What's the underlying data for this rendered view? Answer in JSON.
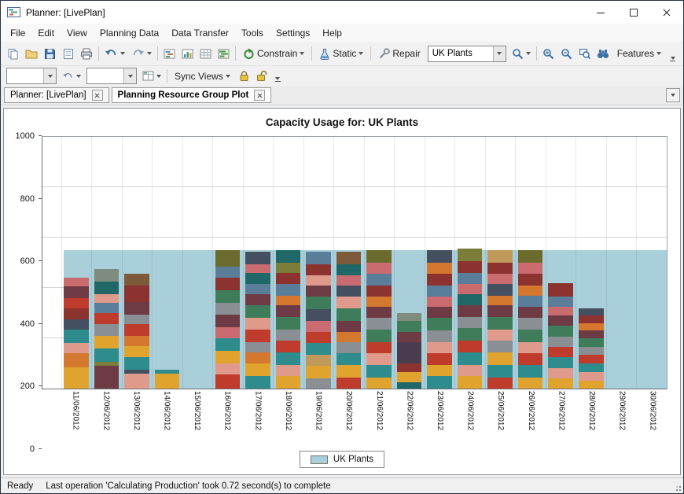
{
  "window": {
    "title": "Planner: [LivePlan]"
  },
  "menu_bar": {
    "items": [
      "File",
      "Edit",
      "View",
      "Planning Data",
      "Data Transfer",
      "Tools",
      "Settings",
      "Help"
    ]
  },
  "toolbar_main": {
    "constrain": "Constrain",
    "static": "Static",
    "repair": "Repair",
    "plant_selector": "UK Plants",
    "features": "Features"
  },
  "toolbar_views": {
    "combo1": "",
    "combo2": "",
    "sync_views": "Sync Views"
  },
  "tab_bar": {
    "tabs": [
      {
        "label": "Planner: [LivePlan]",
        "active": false
      },
      {
        "label": "Planning Resource Group Plot",
        "active": true
      }
    ]
  },
  "chart_data": {
    "type": "bar",
    "stacked": true,
    "title": "Capacity Usage for: UK Plants",
    "ylim": [
      0,
      1000
    ],
    "yticks": [
      0,
      200,
      400,
      600,
      800,
      1000
    ],
    "grid": true,
    "legend_position": "bottom",
    "capacity_series": {
      "name": "UK Plants",
      "value": 550,
      "color": "#a9cfda"
    },
    "legend": [
      {
        "label": "UK Plants",
        "color": "#a9cfda"
      }
    ],
    "categories": [
      "11/06/2012",
      "12/06/2012",
      "13/06/2012",
      "14/06/2012",
      "15/06/2012",
      "16/06/2012",
      "17/06/2012",
      "18/06/2012",
      "19/06/2012",
      "20/06/2012",
      "21/06/2012",
      "22/06/2012",
      "23/06/2012",
      "24/06/2012",
      "25/06/2012",
      "26/06/2012",
      "27/06/2012",
      "28/06/2012",
      "29/06/2012",
      "30/06/2012"
    ],
    "bars": [
      {
        "date": "11/06/2012",
        "total": 440,
        "segments": [
          [
            "#e0a32e",
            85
          ],
          [
            "#d4772f",
            55
          ],
          [
            "#e09a8c",
            40
          ],
          [
            "#2e8c8c",
            55
          ],
          [
            "#445060",
            40
          ],
          [
            "#8c3330",
            45
          ],
          [
            "#bf3b2b",
            40
          ],
          [
            "#6e3a44",
            45
          ],
          [
            "#c96b6f",
            35
          ]
        ]
      },
      {
        "date": "12/06/2012",
        "total": 475,
        "segments": [
          [
            "#6e3a44",
            90
          ],
          [
            "#7d7d3a",
            15
          ],
          [
            "#2e8c8c",
            55
          ],
          [
            "#e0a32e",
            50
          ],
          [
            "#8a8f94",
            45
          ],
          [
            "#bf3b2b",
            45
          ],
          [
            "#5a7d9a",
            40
          ],
          [
            "#e09a8c",
            35
          ],
          [
            "#206868",
            50
          ],
          [
            "#7d8c7c",
            50
          ]
        ]
      },
      {
        "date": "13/06/2012",
        "total": 455,
        "segments": [
          [
            "#e09a8c",
            60
          ],
          [
            "#445060",
            15
          ],
          [
            "#2e8c8c",
            50
          ],
          [
            "#e0a32e",
            45
          ],
          [
            "#d4772f",
            40
          ],
          [
            "#bf3b2b",
            45
          ],
          [
            "#8a8f94",
            40
          ],
          [
            "#6e3a44",
            50
          ],
          [
            "#8c3330",
            65
          ],
          [
            "#7d5a3a",
            45
          ]
        ]
      },
      {
        "date": "14/06/2012",
        "total": 75,
        "segments": [
          [
            "#e0a32e",
            60
          ],
          [
            "#2e8c8c",
            15
          ]
        ]
      },
      {
        "date": "15/06/2012",
        "total": 0,
        "segments": []
      },
      {
        "date": "16/06/2012",
        "total": 550,
        "segments": [
          [
            "#bf3b2b",
            55
          ],
          [
            "#e09a8c",
            45
          ],
          [
            "#e0a32e",
            50
          ],
          [
            "#2e8c8c",
            50
          ],
          [
            "#c96b6f",
            45
          ],
          [
            "#6e3a44",
            50
          ],
          [
            "#8a8f94",
            45
          ],
          [
            "#3f7d5a",
            50
          ],
          [
            "#8c3330",
            50
          ],
          [
            "#5a7d9a",
            45
          ],
          [
            "#6b6b2e",
            65
          ]
        ]
      },
      {
        "date": "17/06/2012",
        "total": 545,
        "segments": [
          [
            "#2e8c8c",
            50
          ],
          [
            "#e0a32e",
            50
          ],
          [
            "#d4772f",
            45
          ],
          [
            "#8a8f94",
            40
          ],
          [
            "#bf3b2b",
            50
          ],
          [
            "#e09a8c",
            45
          ],
          [
            "#3f7d5a",
            50
          ],
          [
            "#6e3a44",
            45
          ],
          [
            "#5a7d9a",
            40
          ],
          [
            "#206868",
            45
          ],
          [
            "#c96b6f",
            35
          ],
          [
            "#445060",
            50
          ]
        ]
      },
      {
        "date": "18/06/2012",
        "total": 550,
        "segments": [
          [
            "#e0a32e",
            50
          ],
          [
            "#e09a8c",
            45
          ],
          [
            "#2e8c8c",
            50
          ],
          [
            "#bf3b2b",
            45
          ],
          [
            "#8a8f94",
            45
          ],
          [
            "#3f7d5a",
            50
          ],
          [
            "#6e3a44",
            45
          ],
          [
            "#d4772f",
            40
          ],
          [
            "#5a7d9a",
            45
          ],
          [
            "#8c3330",
            45
          ],
          [
            "#7d7d3a",
            40
          ],
          [
            "#206868",
            50
          ]
        ]
      },
      {
        "date": "19/06/2012",
        "total": 545,
        "segments": [
          [
            "#8a8f94",
            40
          ],
          [
            "#e0a32e",
            50
          ],
          [
            "#bf9a5a",
            45
          ],
          [
            "#2e8c8c",
            45
          ],
          [
            "#bf3b2b",
            45
          ],
          [
            "#c96b6f",
            45
          ],
          [
            "#445060",
            45
          ],
          [
            "#3f7d5a",
            50
          ],
          [
            "#6e3a44",
            45
          ],
          [
            "#e09a8c",
            40
          ],
          [
            "#8c3330",
            45
          ],
          [
            "#5a7d9a",
            50
          ]
        ]
      },
      {
        "date": "20/06/2012",
        "total": 545,
        "segments": [
          [
            "#bf3b2b",
            45
          ],
          [
            "#e0a32e",
            50
          ],
          [
            "#2e8c8c",
            45
          ],
          [
            "#8a8f94",
            45
          ],
          [
            "#d4772f",
            40
          ],
          [
            "#6e3a44",
            45
          ],
          [
            "#3f7d5a",
            50
          ],
          [
            "#e09a8c",
            45
          ],
          [
            "#445060",
            45
          ],
          [
            "#c96b6f",
            40
          ],
          [
            "#206868",
            45
          ],
          [
            "#7d5a3a",
            50
          ]
        ]
      },
      {
        "date": "21/06/2012",
        "total": 550,
        "segments": [
          [
            "#e0a32e",
            45
          ],
          [
            "#2e8c8c",
            50
          ],
          [
            "#e09a8c",
            45
          ],
          [
            "#bf3b2b",
            45
          ],
          [
            "#3f7d5a",
            50
          ],
          [
            "#8a8f94",
            45
          ],
          [
            "#6e3a44",
            45
          ],
          [
            "#d4772f",
            40
          ],
          [
            "#8c3330",
            45
          ],
          [
            "#5a7d9a",
            45
          ],
          [
            "#c96b6f",
            45
          ],
          [
            "#6b6b2e",
            50
          ]
        ]
      },
      {
        "date": "22/06/2012",
        "total": 300,
        "segments": [
          [
            "#206868",
            25
          ],
          [
            "#e0a32e",
            40
          ],
          [
            "#8c3330",
            35
          ],
          [
            "#4a3c50",
            85
          ],
          [
            "#6e3a44",
            40
          ],
          [
            "#3f7d5a",
            45
          ],
          [
            "#7d8c7c",
            30
          ]
        ]
      },
      {
        "date": "23/06/2012",
        "total": 550,
        "segments": [
          [
            "#2e8c8c",
            50
          ],
          [
            "#e0a32e",
            45
          ],
          [
            "#bf3b2b",
            45
          ],
          [
            "#e09a8c",
            45
          ],
          [
            "#8a8f94",
            45
          ],
          [
            "#3f7d5a",
            50
          ],
          [
            "#6e3a44",
            45
          ],
          [
            "#c96b6f",
            40
          ],
          [
            "#5a7d9a",
            45
          ],
          [
            "#8c3330",
            45
          ],
          [
            "#d4772f",
            45
          ],
          [
            "#445060",
            50
          ]
        ]
      },
      {
        "date": "24/06/2012",
        "total": 555,
        "segments": [
          [
            "#e0a32e",
            50
          ],
          [
            "#e09a8c",
            45
          ],
          [
            "#2e8c8c",
            50
          ],
          [
            "#bf3b2b",
            45
          ],
          [
            "#3f7d5a",
            50
          ],
          [
            "#8a8f94",
            45
          ],
          [
            "#6e3a44",
            45
          ],
          [
            "#206868",
            45
          ],
          [
            "#c96b6f",
            40
          ],
          [
            "#5a7d9a",
            45
          ],
          [
            "#8c3330",
            45
          ],
          [
            "#7d7d3a",
            50
          ]
        ]
      },
      {
        "date": "25/06/2012",
        "total": 550,
        "segments": [
          [
            "#bf3b2b",
            45
          ],
          [
            "#2e8c8c",
            50
          ],
          [
            "#e0a32e",
            50
          ],
          [
            "#8a8f94",
            45
          ],
          [
            "#e09a8c",
            45
          ],
          [
            "#3f7d5a",
            50
          ],
          [
            "#6e3a44",
            45
          ],
          [
            "#d4772f",
            40
          ],
          [
            "#445060",
            45
          ],
          [
            "#c96b6f",
            40
          ],
          [
            "#8c3330",
            45
          ],
          [
            "#bf9a5a",
            50
          ]
        ]
      },
      {
        "date": "26/06/2012",
        "total": 550,
        "segments": [
          [
            "#e0a32e",
            45
          ],
          [
            "#2e8c8c",
            50
          ],
          [
            "#bf3b2b",
            45
          ],
          [
            "#e09a8c",
            45
          ],
          [
            "#3f7d5a",
            50
          ],
          [
            "#8a8f94",
            45
          ],
          [
            "#6e3a44",
            45
          ],
          [
            "#5a7d9a",
            45
          ],
          [
            "#d4772f",
            40
          ],
          [
            "#8c3330",
            45
          ],
          [
            "#c96b6f",
            45
          ],
          [
            "#6b6b2e",
            50
          ]
        ]
      },
      {
        "date": "27/06/2012",
        "total": 420,
        "segments": [
          [
            "#e0a32e",
            40
          ],
          [
            "#e09a8c",
            40
          ],
          [
            "#2e8c8c",
            45
          ],
          [
            "#bf3b2b",
            40
          ],
          [
            "#8a8f94",
            40
          ],
          [
            "#3f7d5a",
            45
          ],
          [
            "#6e3a44",
            40
          ],
          [
            "#c96b6f",
            35
          ],
          [
            "#5a7d9a",
            40
          ],
          [
            "#8c3330",
            55
          ]
        ]
      },
      {
        "date": "28/06/2012",
        "total": 320,
        "segments": [
          [
            "#e0a32e",
            30
          ],
          [
            "#e09a8c",
            35
          ],
          [
            "#2e8c8c",
            35
          ],
          [
            "#bf3b2b",
            35
          ],
          [
            "#8a8f94",
            30
          ],
          [
            "#3f7d5a",
            35
          ],
          [
            "#6e3a44",
            30
          ],
          [
            "#d4772f",
            30
          ],
          [
            "#8c3330",
            30
          ],
          [
            "#445060",
            30
          ]
        ]
      },
      {
        "date": "29/06/2012",
        "total": 0,
        "segments": []
      },
      {
        "date": "30/06/2012",
        "total": 0,
        "segments": []
      }
    ]
  },
  "status_bar": {
    "ready": "Ready",
    "message": "Last operation 'Calculating Production' took 0.72 second(s) to complete"
  }
}
